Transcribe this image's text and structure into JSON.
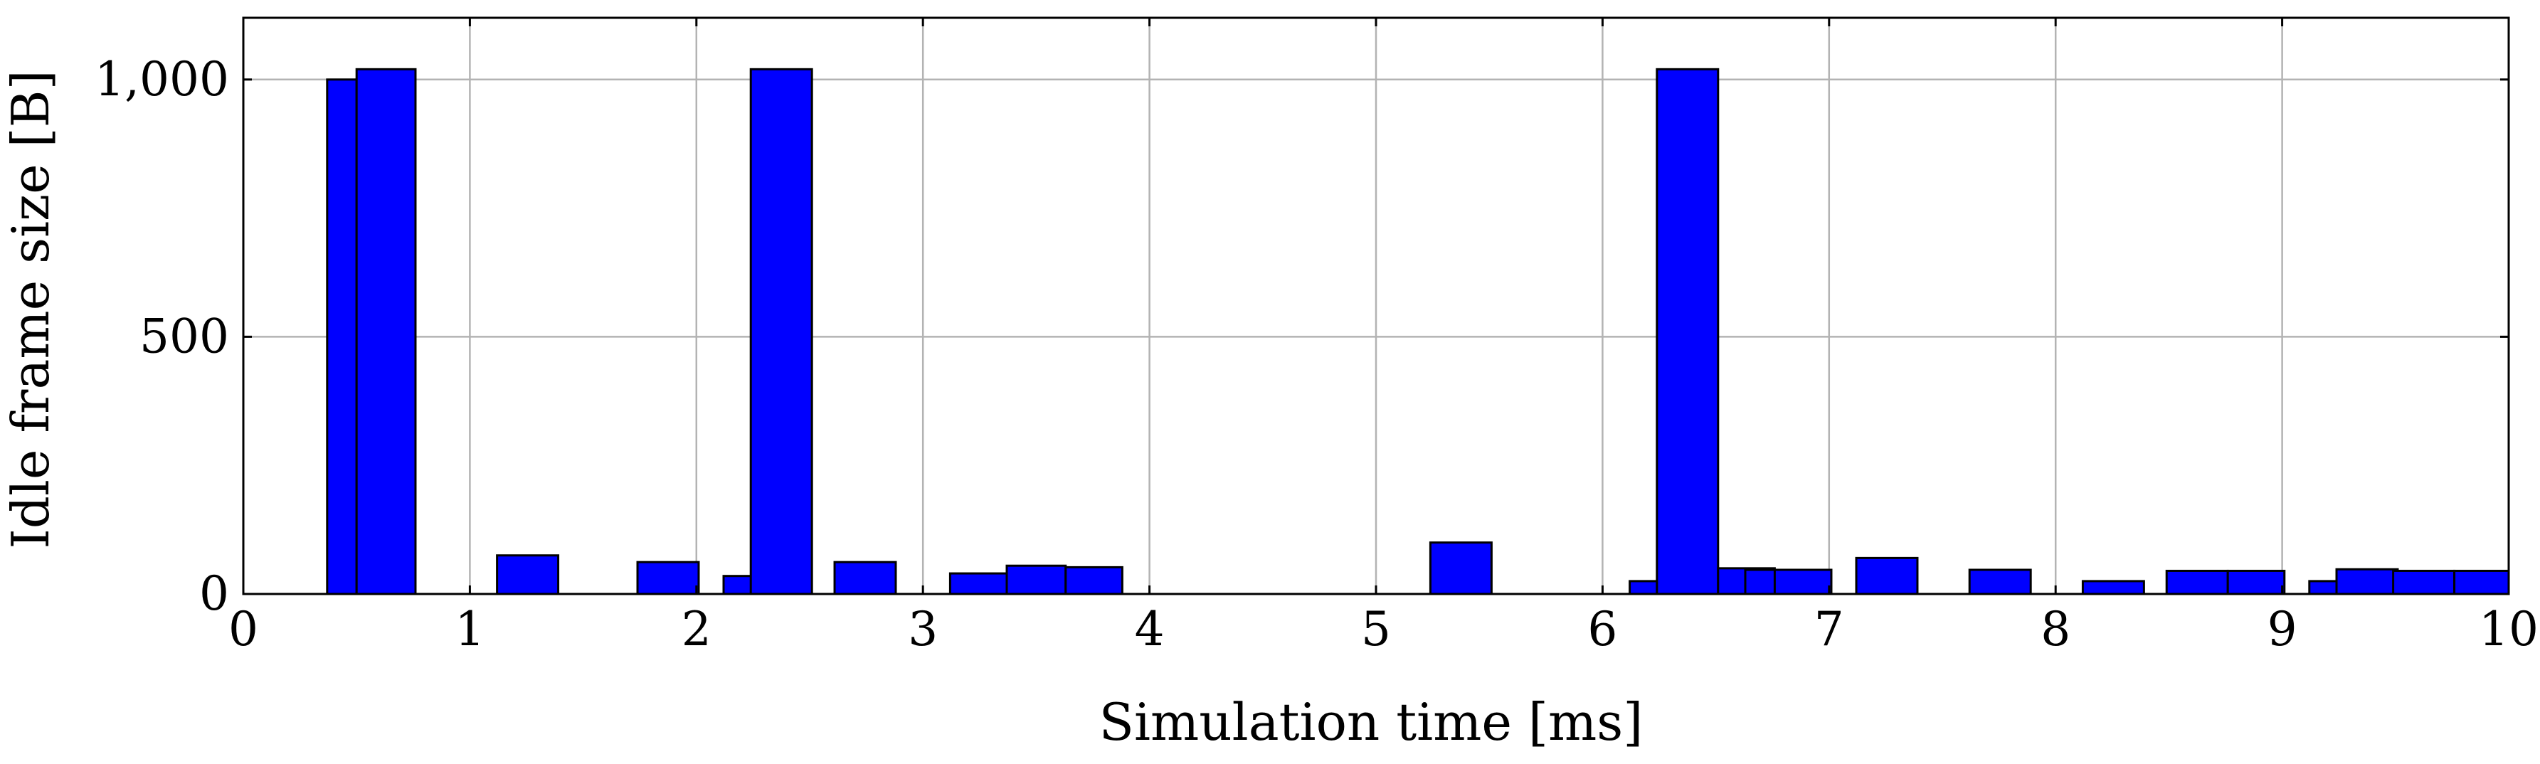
{
  "chart_data": {
    "type": "bar",
    "title": "",
    "xlabel": "Simulation time [ms]",
    "ylabel": "Idle frame size [B]",
    "xlim": [
      0,
      10
    ],
    "ylim": [
      0,
      1120
    ],
    "grid": true,
    "x_ticks": [
      {
        "value": 0,
        "label": "0"
      },
      {
        "value": 1,
        "label": "1"
      },
      {
        "value": 2,
        "label": "2"
      },
      {
        "value": 3,
        "label": "3"
      },
      {
        "value": 4,
        "label": "4"
      },
      {
        "value": 5,
        "label": "5"
      },
      {
        "value": 6,
        "label": "6"
      },
      {
        "value": 7,
        "label": "7"
      },
      {
        "value": 8,
        "label": "8"
      },
      {
        "value": 9,
        "label": "9"
      },
      {
        "value": 10,
        "label": "10"
      }
    ],
    "y_ticks": [
      {
        "value": 0,
        "label": "0"
      },
      {
        "value": 500,
        "label": "500"
      },
      {
        "value": 1000,
        "label": "1,000"
      }
    ],
    "series": [
      {
        "color": "#0000ff",
        "bars": [
          {
            "x0": 0.37,
            "x1": 0.53,
            "value": 1000
          },
          {
            "x0": 0.5,
            "x1": 0.63,
            "value": 1000
          },
          {
            "x0": 0.5,
            "x1": 0.76,
            "value": 1020
          },
          {
            "x0": 1.12,
            "x1": 1.39,
            "value": 75
          },
          {
            "x0": 1.74,
            "x1": 2.01,
            "value": 62
          },
          {
            "x0": 2.12,
            "x1": 2.39,
            "value": 35
          },
          {
            "x0": 2.24,
            "x1": 2.51,
            "value": 1020
          },
          {
            "x0": 2.61,
            "x1": 2.88,
            "value": 62
          },
          {
            "x0": 3.12,
            "x1": 3.37,
            "value": 40
          },
          {
            "x0": 3.37,
            "x1": 3.63,
            "value": 55
          },
          {
            "x0": 3.63,
            "x1": 3.88,
            "value": 52
          },
          {
            "x0": 5.24,
            "x1": 5.51,
            "value": 100
          },
          {
            "x0": 6.12,
            "x1": 6.39,
            "value": 25
          },
          {
            "x0": 6.24,
            "x1": 6.51,
            "value": 1020
          },
          {
            "x0": 6.51,
            "x1": 6.76,
            "value": 50
          },
          {
            "x0": 6.63,
            "x1": 6.88,
            "value": 47
          },
          {
            "x0": 6.76,
            "x1": 7.01,
            "value": 47
          },
          {
            "x0": 7.12,
            "x1": 7.39,
            "value": 70
          },
          {
            "x0": 7.62,
            "x1": 7.89,
            "value": 47
          },
          {
            "x0": 8.12,
            "x1": 8.39,
            "value": 25
          },
          {
            "x0": 8.49,
            "x1": 8.76,
            "value": 45
          },
          {
            "x0": 8.76,
            "x1": 9.01,
            "value": 45
          },
          {
            "x0": 9.12,
            "x1": 9.37,
            "value": 25
          },
          {
            "x0": 9.24,
            "x1": 9.51,
            "value": 48
          },
          {
            "x0": 9.49,
            "x1": 9.76,
            "value": 45
          },
          {
            "x0": 9.76,
            "x1": 10.0,
            "value": 45
          }
        ]
      }
    ]
  }
}
